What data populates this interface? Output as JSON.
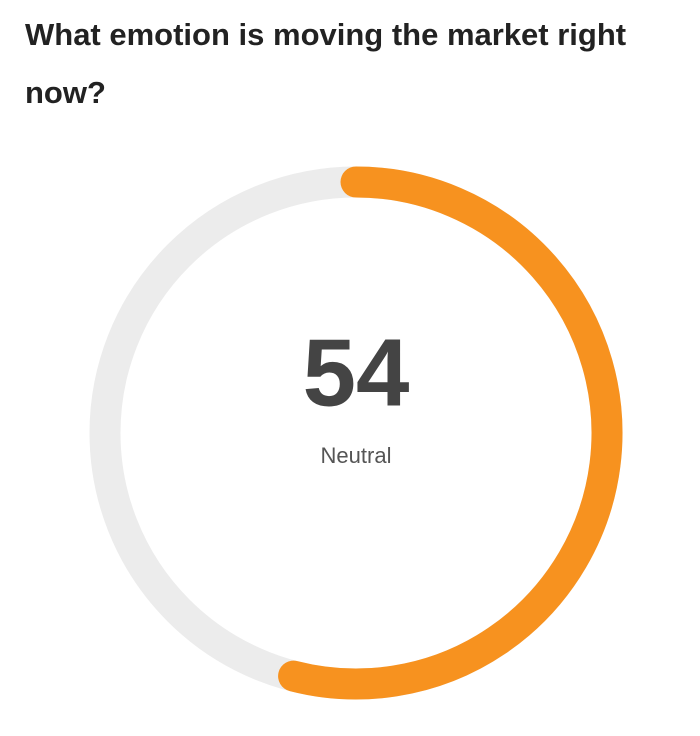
{
  "chart_data": {
    "type": "gauge",
    "title": "What emotion is moving the market right now?",
    "value": 54,
    "label": "Neutral",
    "ylim": [
      0,
      100
    ],
    "color": "#f7921f",
    "track_color": "#ececec"
  }
}
